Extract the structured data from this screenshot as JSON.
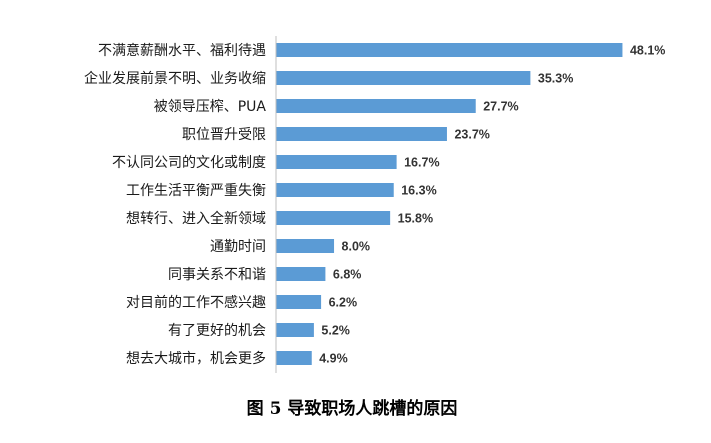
{
  "chart_data": {
    "type": "bar",
    "orientation": "horizontal",
    "categories": [
      "不满意薪酬水平、福利待遇",
      "企业发展前景不明、业务收缩",
      "被领导压榨、PUA",
      "职位晋升受限",
      "不认同公司的文化或制度",
      "工作生活平衡严重失衡",
      "想转行、进入全新领域",
      "通勤时间",
      "同事关系不和谐",
      "对目前的工作不感兴趣",
      "有了更好的机会",
      "想去大城市，机会更多"
    ],
    "values": [
      48.1,
      35.3,
      27.7,
      23.7,
      16.7,
      16.3,
      15.8,
      8.0,
      6.8,
      6.2,
      5.2,
      4.9
    ],
    "value_labels": [
      "48.1%",
      "35.3%",
      "27.7%",
      "23.7%",
      "16.7%",
      "16.3%",
      "15.8%",
      "8.0%",
      "6.8%",
      "6.2%",
      "5.2%",
      "4.9%"
    ],
    "xlim": [
      0,
      52
    ],
    "bar_color": "#5b9bd5",
    "axis_color": "#bfbfbf",
    "grid": false,
    "legend": "none",
    "title": "",
    "xlabel": "",
    "ylabel": ""
  },
  "caption": "图 5  导致职场人跳槽的原因"
}
